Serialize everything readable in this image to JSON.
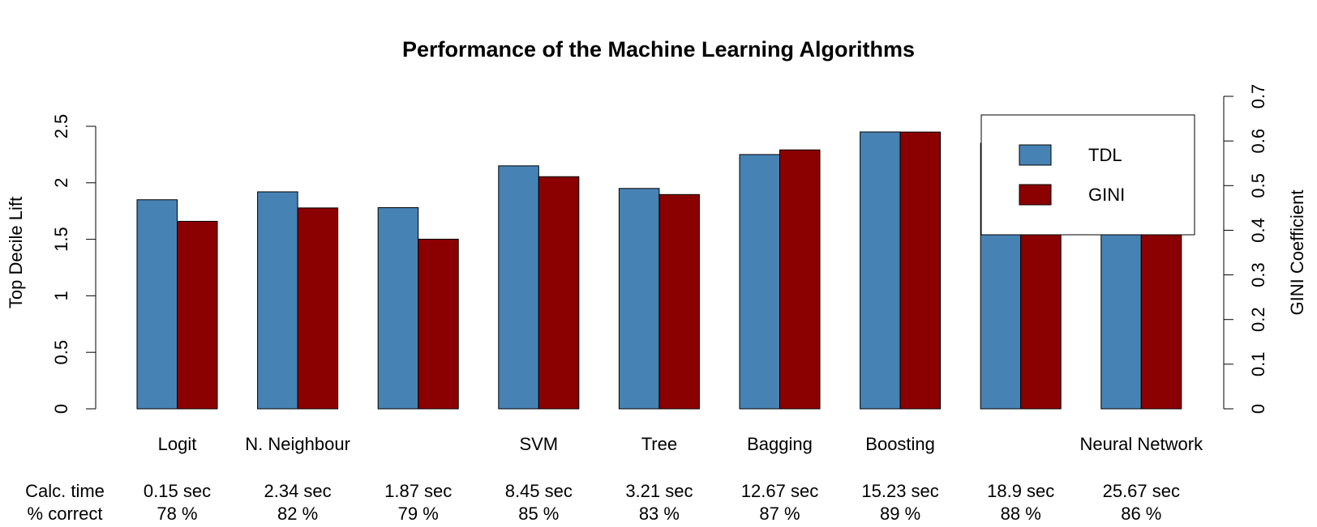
{
  "chart_data": {
    "type": "bar",
    "title": "Performance of the Machine Learning Algorithms",
    "ylabel_left": "Top Decile Lift",
    "ylabel_right": "GINI Coefficient",
    "ylim_left": [
      0,
      2.5
    ],
    "ylim_right": [
      0,
      0.7
    ],
    "yticks_left": [
      "0",
      "0.5",
      "1",
      "1.5",
      "2",
      "2.5"
    ],
    "yticks_right": [
      "0",
      "0.1",
      "0.2",
      "0.3",
      "0.4",
      "0.5",
      "0.6",
      "0.7"
    ],
    "categories": [
      "Logit",
      "N. Neighbour",
      "",
      "SVM",
      "Tree",
      "Bagging",
      "Boosting",
      "",
      "Neural Network"
    ],
    "series": [
      {
        "name": "TDL",
        "axis": "left",
        "color": "#4682B4",
        "values": [
          1.85,
          1.92,
          1.78,
          2.15,
          1.95,
          2.25,
          2.45,
          2.35,
          2.1
        ]
      },
      {
        "name": "GINI",
        "axis": "right",
        "color": "#8B0000",
        "values": [
          0.42,
          0.45,
          0.38,
          0.52,
          0.48,
          0.58,
          0.62,
          0.6,
          0.55
        ]
      }
    ],
    "calc_time_label": "Calc. time",
    "pct_correct_label": "% correct",
    "calc_times": [
      "0.15 sec",
      "2.34 sec",
      "1.87 sec",
      "8.45 sec",
      "3.21 sec",
      "12.67 sec",
      "15.23 sec",
      "18.9 sec",
      "25.67 sec"
    ],
    "pct_correct": [
      "78 %",
      "82 %",
      "79 %",
      "85 %",
      "83 %",
      "87 %",
      "89 %",
      "88 %",
      "86 %"
    ],
    "legend": {
      "position": "top-right",
      "entries": [
        "TDL",
        "GINI"
      ]
    },
    "grid": false
  }
}
